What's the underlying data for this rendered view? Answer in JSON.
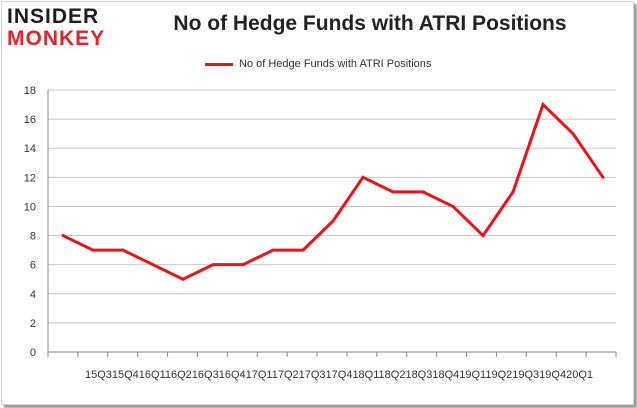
{
  "logo": {
    "line1": "INSIDER",
    "line2": "MONKEY"
  },
  "colors": {
    "series": "#e8141a",
    "grid": "#c8c8c8",
    "axis": "#888888",
    "logo_red": "#e0262c"
  },
  "chart_data": {
    "type": "line",
    "title": "No of Hedge Funds with ATRI Positions",
    "legend": {
      "placement": "top-center"
    },
    "grid": true,
    "categories": [
      "2015Q3",
      "2015Q4",
      "2016Q1",
      "2016Q2",
      "2016Q3",
      "2016Q4",
      "2017Q1",
      "2017Q2",
      "2017Q3",
      "2017Q4",
      "2018Q1",
      "2018Q2",
      "2018Q3",
      "2018Q4",
      "2019Q1",
      "2019Q2",
      "2019Q3",
      "2019Q4",
      "2020Q1"
    ],
    "x_tick_text": "15Q315Q416Q116Q216Q316Q417Q117Q217Q317Q418Q118Q218Q318Q419Q119Q219Q319Q420Q1",
    "series": [
      {
        "name": "No of Hedge Funds with ATRI Positions",
        "values": [
          8,
          7,
          7,
          6,
          5,
          6,
          6,
          7,
          7,
          9,
          12,
          11,
          11,
          10,
          8,
          11,
          17,
          15,
          12
        ]
      }
    ],
    "ylim": [
      0,
      18
    ],
    "yticks": [
      "0",
      "2",
      "4",
      "6",
      "8",
      "10",
      "12",
      "14",
      "16",
      "18"
    ]
  }
}
